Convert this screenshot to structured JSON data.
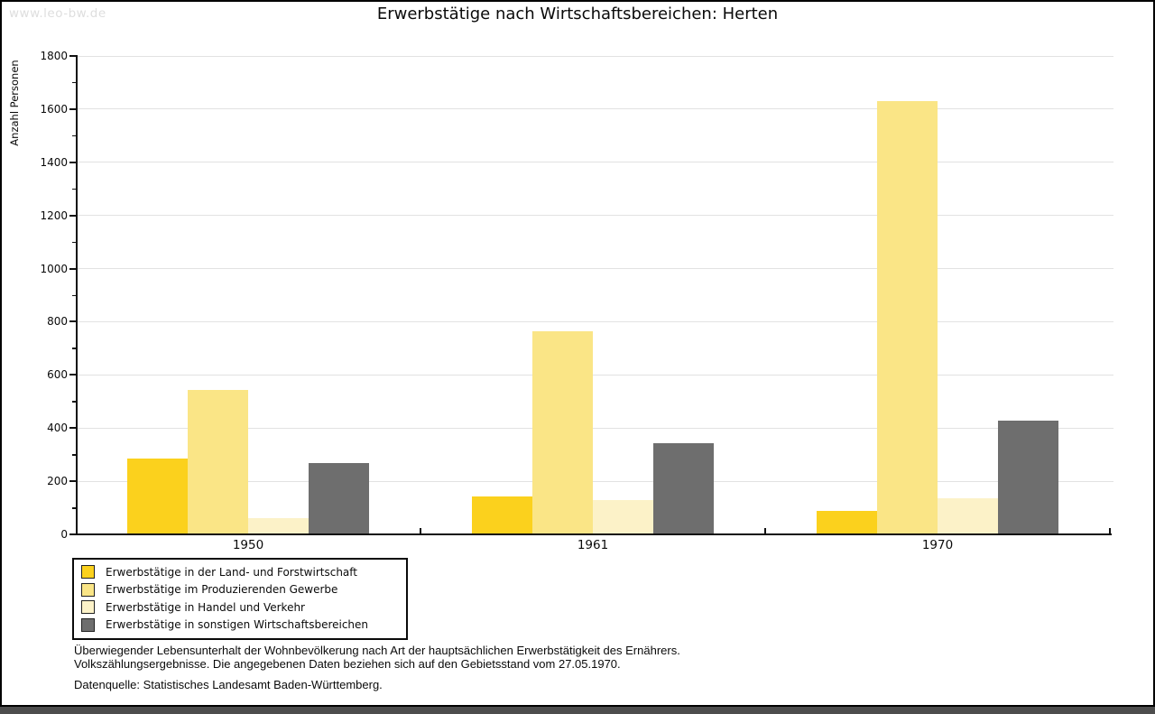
{
  "watermark": "www.leo-bw.de",
  "title": "Erwerbstätige nach Wirtschaftsbereichen: Herten",
  "chart_data": {
    "type": "bar",
    "title": "Erwerbstätige nach Wirtschaftsbereichen: Herten",
    "xlabel": "",
    "ylabel": "Anzahl Personen",
    "categories": [
      "1950",
      "1961",
      "1970"
    ],
    "series": [
      {
        "name": "Erwerbstätige in der Land- und Forstwirtschaft",
        "color": "#fbd11d",
        "values": [
          285,
          141,
          88
        ]
      },
      {
        "name": "Erwerbstätige im Produzierenden Gewerbe",
        "color": "#fae586",
        "values": [
          545,
          765,
          1631
        ]
      },
      {
        "name": "Erwerbstätige in Handel und Verkehr",
        "color": "#fcf2c8",
        "values": [
          62,
          128,
          136
        ]
      },
      {
        "name": "Erwerbstätige in sonstigen Wirtschaftsbereichen",
        "color": "#6e6e6e",
        "values": [
          270,
          343,
          427
        ]
      }
    ],
    "ylim": [
      0,
      1800
    ],
    "ytick_step": 200,
    "y_minor_tick_step": 100,
    "grid": true,
    "legend_position": "below-left"
  },
  "footnotes": {
    "line1": "Überwiegender Lebensunterhalt der Wohnbevölkerung nach Art der hauptsächlichen Erwerbstätigkeit des Ernährers.",
    "line2": "Volkszählungsergebnisse. Die angegebenen Daten beziehen sich auf den Gebietsstand vom 27.05.1970.",
    "source": "Datenquelle: Statistisches Landesamt Baden-Württemberg."
  },
  "colors": {
    "background": "#ffffff",
    "border": "#000000",
    "grid": "#e2e2e2",
    "axis": "#111111",
    "text": "#0a0a0a",
    "watermark": "#dedede",
    "bottom_bar": "#4d4d4d"
  }
}
